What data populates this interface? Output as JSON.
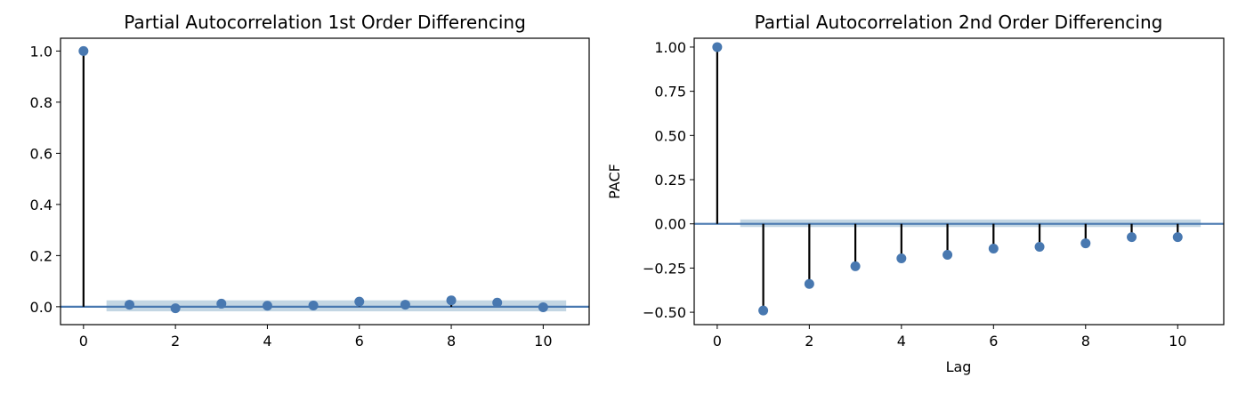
{
  "chart_data": [
    {
      "type": "stem",
      "title": "Partial Autocorrelation 1st Order Differencing",
      "xlabel": "",
      "ylabel": "",
      "x": [
        0,
        1,
        2,
        3,
        4,
        5,
        6,
        7,
        8,
        9,
        10
      ],
      "values": [
        1.0,
        0.008,
        -0.006,
        0.012,
        0.004,
        0.005,
        0.02,
        0.008,
        0.025,
        0.016,
        -0.002
      ],
      "confidence_band": [
        -0.018,
        0.025
      ],
      "xlim": [
        -0.5,
        11.0
      ],
      "ylim": [
        -0.07,
        1.05
      ],
      "xticks": [
        "0",
        "2",
        "4",
        "6",
        "8",
        "10"
      ],
      "yticks": [
        "0.0",
        "0.2",
        "0.4",
        "0.6",
        "0.8",
        "1.0"
      ],
      "grid": false,
      "colors": {
        "marker": "#4878b0",
        "stem": "#000000",
        "zero_line": "#4878b0",
        "band": "#b8cfde"
      }
    },
    {
      "type": "stem",
      "title": "Partial Autocorrelation 2nd Order Differencing",
      "xlabel": "Lag",
      "ylabel": "PACF",
      "x": [
        0,
        1,
        2,
        3,
        4,
        5,
        6,
        7,
        8,
        9,
        10
      ],
      "values": [
        1.0,
        -0.49,
        -0.34,
        -0.24,
        -0.195,
        -0.175,
        -0.14,
        -0.13,
        -0.11,
        -0.075,
        -0.075
      ],
      "confidence_band": [
        -0.018,
        0.025
      ],
      "xlim": [
        -0.5,
        11.0
      ],
      "ylim": [
        -0.57,
        1.05
      ],
      "xticks": [
        "0",
        "2",
        "4",
        "6",
        "8",
        "10"
      ],
      "yticks": [
        "−0.50",
        "−0.25",
        "0.00",
        "0.25",
        "0.50",
        "0.75",
        "1.00"
      ],
      "grid": false,
      "colors": {
        "marker": "#4878b0",
        "stem": "#000000",
        "zero_line": "#4878b0",
        "band": "#b8cfde"
      }
    }
  ]
}
